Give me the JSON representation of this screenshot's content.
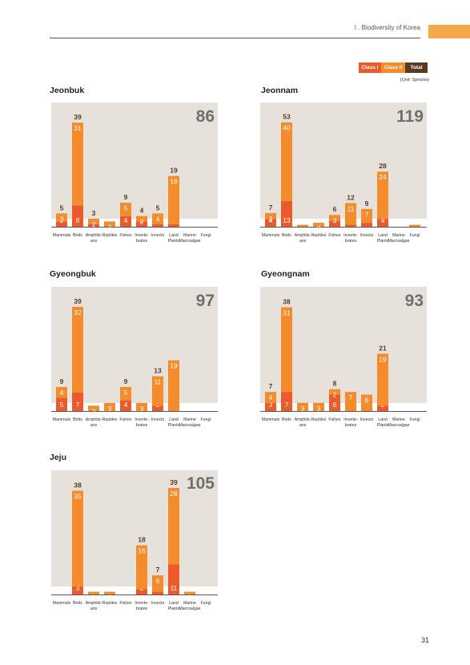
{
  "header": {
    "text": "I . Biodiversity of Korea"
  },
  "legend": {
    "class1": "Class I",
    "class2": "Class II",
    "total": "Total",
    "unit": "(Unit: Species)"
  },
  "colors": {
    "class1": "#ea5a2a",
    "class2": "#f48c2c",
    "total_text": "#5a3a22",
    "panel_bg": "#e6e2db",
    "accent_tab": "#f4a84a"
  },
  "page_number": "31",
  "chart_data": [
    {
      "type": "bar",
      "stacked": true,
      "title": "Jeonbuk",
      "total": "86",
      "categories": [
        "Mammals",
        "Birds",
        "Amphibi-\nans",
        "Reptiles",
        "Fishes",
        "Inverte-\nbrates",
        "Insects",
        "Land\nPlants",
        "Marine\nMacroalgae",
        "Fungi"
      ],
      "series": [
        {
          "name": "Class I",
          "values": [
            2,
            8,
            1,
            0,
            4,
            2,
            1,
            1,
            0,
            0
          ]
        },
        {
          "name": "Class II",
          "values": [
            3,
            31,
            2,
            2,
            5,
            2,
            4,
            18,
            0,
            0
          ]
        }
      ],
      "totals": [
        5,
        39,
        3,
        2,
        9,
        4,
        5,
        19,
        0,
        0
      ],
      "ylim": [
        0,
        45
      ]
    },
    {
      "type": "bar",
      "stacked": true,
      "title": "Jeonnam",
      "total": "119",
      "categories": [
        "Mammals",
        "Birds",
        "Amphibi-\nans",
        "Reptiles",
        "Fishes",
        "Inverte-\nbrates",
        "Insects",
        "Land\nPlants",
        "Marine\nMacroalgae",
        "Fungi"
      ],
      "series": [
        {
          "name": "Class I",
          "values": [
            4,
            13,
            0,
            0,
            3,
            1,
            2,
            4,
            0,
            0
          ]
        },
        {
          "name": "Class II",
          "values": [
            3,
            40,
            1,
            2,
            3,
            11,
            7,
            24,
            0,
            1
          ]
        }
      ],
      "totals": [
        7,
        53,
        1,
        2,
        6,
        12,
        9,
        28,
        0,
        1
      ],
      "ylim": [
        0,
        61
      ]
    },
    {
      "type": "bar",
      "stacked": true,
      "title": "Gyeongbuk",
      "total": "97",
      "categories": [
        "Mammals",
        "Birds",
        "Amphibi-\nans",
        "Reptiles",
        "Fishes",
        "Inverte-\nbrates",
        "Insects",
        "Land\nPlants",
        "Marine\nMacroalgae",
        "Fungi"
      ],
      "series": [
        {
          "name": "Class I",
          "values": [
            5,
            7,
            0,
            0,
            4,
            0,
            2,
            0,
            0,
            0
          ]
        },
        {
          "name": "Class II",
          "values": [
            4,
            32,
            2,
            3,
            5,
            3,
            11,
            19,
            0,
            0
          ]
        }
      ],
      "totals": [
        9,
        39,
        2,
        3,
        9,
        3,
        13,
        19,
        0,
        0
      ],
      "ylim": [
        0,
        45
      ]
    },
    {
      "type": "bar",
      "stacked": true,
      "title": "Gyeongnam",
      "total": "93",
      "categories": [
        "Mammals",
        "Birds",
        "Amphibi-\nans",
        "Reptiles",
        "Fishes",
        "Inverte-\nbrates",
        "Insects",
        "Land\nPlants",
        "Marine\nMacroalgae",
        "Fungi"
      ],
      "series": [
        {
          "name": "Class I",
          "values": [
            3,
            7,
            0,
            0,
            6,
            0,
            0,
            2,
            0,
            0
          ]
        },
        {
          "name": "Class II",
          "values": [
            4,
            31,
            3,
            3,
            2,
            7,
            6,
            19,
            0,
            0
          ]
        }
      ],
      "totals": [
        7,
        38,
        3,
        3,
        8,
        7,
        6,
        21,
        0,
        0
      ],
      "ylim": [
        0,
        44
      ]
    },
    {
      "type": "bar",
      "stacked": true,
      "title": "Jeju",
      "total": "105",
      "categories": [
        "Mammals",
        "Birds",
        "Amphibi-\nans",
        "Reptiles",
        "Fishes",
        "Inverte-\nbrates",
        "Insects",
        "Land\nPlants",
        "Marine\nMacroalgae",
        "Fungi"
      ],
      "series": [
        {
          "name": "Class I",
          "values": [
            0,
            3,
            0,
            0,
            0,
            2,
            1,
            11,
            0,
            0
          ]
        },
        {
          "name": "Class II",
          "values": [
            0,
            35,
            1,
            1,
            0,
            16,
            6,
            28,
            1,
            0
          ]
        }
      ],
      "totals": [
        0,
        38,
        1,
        1,
        0,
        18,
        7,
        39,
        1,
        0
      ],
      "ylim": [
        0,
        44
      ]
    }
  ]
}
